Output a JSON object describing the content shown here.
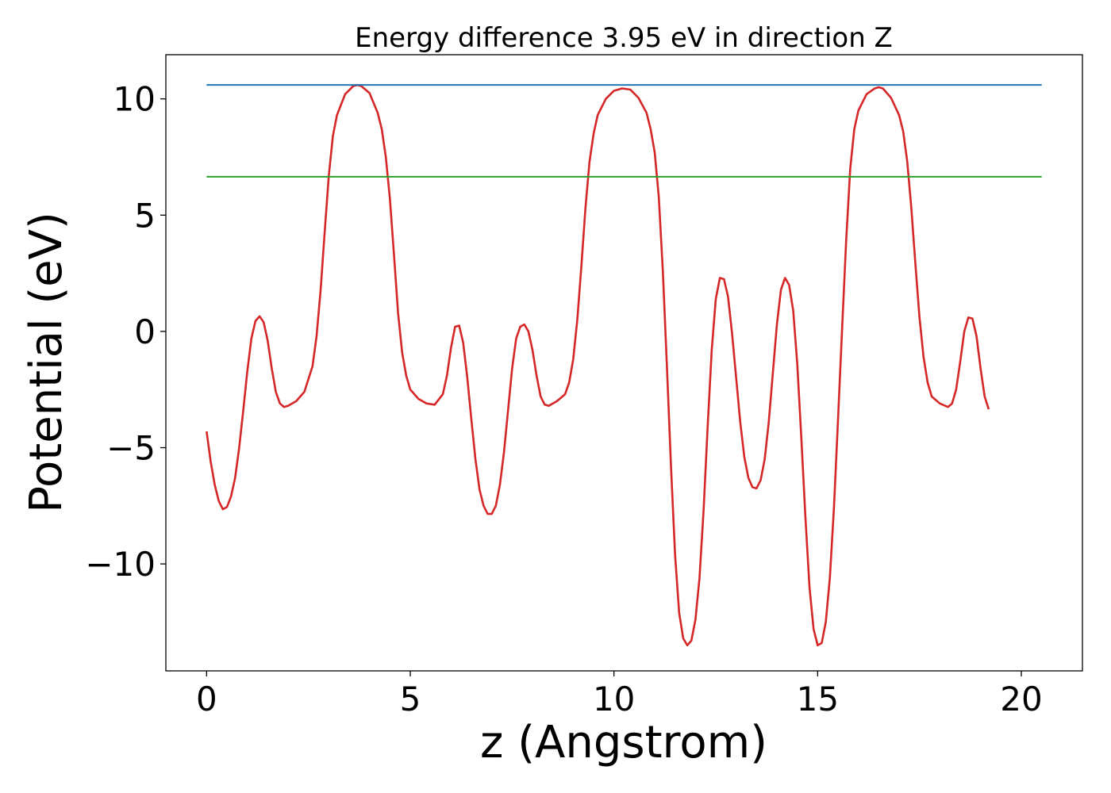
{
  "chart_data": {
    "type": "line",
    "title": "Energy difference 3.95 eV in direction Z",
    "xlabel": "z (Angstrom)",
    "ylabel": "Potential (eV)",
    "xlim": [
      -1.0,
      21.5
    ],
    "ylim": [
      -14.6,
      11.9
    ],
    "xticks": [
      0,
      5,
      10,
      15,
      20
    ],
    "yticks": [
      10,
      5,
      0,
      -5,
      -10
    ],
    "xtick_labels": [
      "0",
      "5",
      "10",
      "15",
      "20"
    ],
    "ytick_labels": [
      "10",
      "5",
      "0",
      "−5",
      "−10"
    ],
    "grid": false,
    "legend": "none",
    "series": [
      {
        "color": "#d62728",
        "style": "line",
        "points": [
          [
            0.0,
            -4.3
          ],
          [
            0.1,
            -5.6
          ],
          [
            0.2,
            -6.6
          ],
          [
            0.3,
            -7.3
          ],
          [
            0.4,
            -7.65
          ],
          [
            0.5,
            -7.55
          ],
          [
            0.6,
            -7.1
          ],
          [
            0.7,
            -6.3
          ],
          [
            0.8,
            -5.0
          ],
          [
            0.9,
            -3.4
          ],
          [
            1.0,
            -1.7
          ],
          [
            1.1,
            -0.3
          ],
          [
            1.2,
            0.45
          ],
          [
            1.3,
            0.65
          ],
          [
            1.4,
            0.4
          ],
          [
            1.5,
            -0.4
          ],
          [
            1.6,
            -1.6
          ],
          [
            1.7,
            -2.6
          ],
          [
            1.8,
            -3.1
          ],
          [
            1.9,
            -3.25
          ],
          [
            2.0,
            -3.2
          ],
          [
            2.2,
            -3.0
          ],
          [
            2.4,
            -2.6
          ],
          [
            2.6,
            -1.5
          ],
          [
            2.7,
            -0.2
          ],
          [
            2.8,
            1.8
          ],
          [
            2.9,
            4.3
          ],
          [
            3.0,
            6.7
          ],
          [
            3.1,
            8.4
          ],
          [
            3.2,
            9.3
          ],
          [
            3.4,
            10.2
          ],
          [
            3.6,
            10.55
          ],
          [
            3.7,
            10.6
          ],
          [
            3.8,
            10.55
          ],
          [
            4.0,
            10.25
          ],
          [
            4.2,
            9.4
          ],
          [
            4.3,
            8.7
          ],
          [
            4.4,
            7.5
          ],
          [
            4.5,
            5.7
          ],
          [
            4.6,
            3.3
          ],
          [
            4.7,
            0.8
          ],
          [
            4.8,
            -0.9
          ],
          [
            4.9,
            -1.9
          ],
          [
            5.0,
            -2.5
          ],
          [
            5.2,
            -2.9
          ],
          [
            5.4,
            -3.1
          ],
          [
            5.6,
            -3.15
          ],
          [
            5.8,
            -2.7
          ],
          [
            5.9,
            -1.9
          ],
          [
            6.0,
            -0.7
          ],
          [
            6.1,
            0.2
          ],
          [
            6.2,
            0.25
          ],
          [
            6.3,
            -0.5
          ],
          [
            6.4,
            -2.0
          ],
          [
            6.5,
            -3.8
          ],
          [
            6.6,
            -5.5
          ],
          [
            6.7,
            -6.8
          ],
          [
            6.8,
            -7.5
          ],
          [
            6.9,
            -7.85
          ],
          [
            7.0,
            -7.85
          ],
          [
            7.1,
            -7.5
          ],
          [
            7.2,
            -6.6
          ],
          [
            7.3,
            -5.2
          ],
          [
            7.4,
            -3.4
          ],
          [
            7.5,
            -1.6
          ],
          [
            7.6,
            -0.3
          ],
          [
            7.7,
            0.2
          ],
          [
            7.8,
            0.3
          ],
          [
            7.9,
            0.0
          ],
          [
            8.0,
            -0.8
          ],
          [
            8.1,
            -1.9
          ],
          [
            8.2,
            -2.8
          ],
          [
            8.3,
            -3.15
          ],
          [
            8.4,
            -3.2
          ],
          [
            8.6,
            -3.0
          ],
          [
            8.8,
            -2.7
          ],
          [
            8.9,
            -2.2
          ],
          [
            9.0,
            -1.2
          ],
          [
            9.1,
            0.5
          ],
          [
            9.2,
            2.8
          ],
          [
            9.3,
            5.3
          ],
          [
            9.4,
            7.3
          ],
          [
            9.5,
            8.5
          ],
          [
            9.6,
            9.3
          ],
          [
            9.8,
            10.0
          ],
          [
            10.0,
            10.35
          ],
          [
            10.2,
            10.45
          ],
          [
            10.4,
            10.4
          ],
          [
            10.6,
            10.05
          ],
          [
            10.8,
            9.4
          ],
          [
            10.9,
            8.7
          ],
          [
            11.0,
            7.7
          ],
          [
            11.1,
            5.8
          ],
          [
            11.2,
            2.6
          ],
          [
            11.3,
            -1.5
          ],
          [
            11.4,
            -5.8
          ],
          [
            11.5,
            -9.6
          ],
          [
            11.6,
            -12.1
          ],
          [
            11.7,
            -13.2
          ],
          [
            11.8,
            -13.5
          ],
          [
            11.9,
            -13.3
          ],
          [
            12.0,
            -12.4
          ],
          [
            12.1,
            -10.6
          ],
          [
            12.2,
            -7.7
          ],
          [
            12.3,
            -4.1
          ],
          [
            12.4,
            -0.8
          ],
          [
            12.5,
            1.4
          ],
          [
            12.6,
            2.3
          ],
          [
            12.7,
            2.25
          ],
          [
            12.8,
            1.5
          ],
          [
            12.9,
            -0.1
          ],
          [
            13.0,
            -2.0
          ],
          [
            13.1,
            -3.9
          ],
          [
            13.2,
            -5.4
          ],
          [
            13.3,
            -6.3
          ],
          [
            13.4,
            -6.7
          ],
          [
            13.5,
            -6.75
          ],
          [
            13.6,
            -6.4
          ],
          [
            13.7,
            -5.5
          ],
          [
            13.8,
            -3.9
          ],
          [
            13.9,
            -1.8
          ],
          [
            14.0,
            0.3
          ],
          [
            14.1,
            1.8
          ],
          [
            14.2,
            2.3
          ],
          [
            14.3,
            2.0
          ],
          [
            14.4,
            0.9
          ],
          [
            14.5,
            -1.4
          ],
          [
            14.6,
            -4.6
          ],
          [
            14.7,
            -8.0
          ],
          [
            14.8,
            -11.0
          ],
          [
            14.9,
            -12.8
          ],
          [
            15.0,
            -13.5
          ],
          [
            15.1,
            -13.4
          ],
          [
            15.2,
            -12.5
          ],
          [
            15.3,
            -10.6
          ],
          [
            15.4,
            -7.6
          ],
          [
            15.5,
            -3.8
          ],
          [
            15.6,
            0.1
          ],
          [
            15.7,
            3.9
          ],
          [
            15.8,
            7.0
          ],
          [
            15.9,
            8.7
          ],
          [
            16.0,
            9.5
          ],
          [
            16.2,
            10.2
          ],
          [
            16.4,
            10.45
          ],
          [
            16.5,
            10.5
          ],
          [
            16.6,
            10.45
          ],
          [
            16.8,
            10.05
          ],
          [
            17.0,
            9.3
          ],
          [
            17.1,
            8.6
          ],
          [
            17.2,
            7.3
          ],
          [
            17.3,
            5.3
          ],
          [
            17.4,
            2.9
          ],
          [
            17.5,
            0.6
          ],
          [
            17.6,
            -1.1
          ],
          [
            17.7,
            -2.2
          ],
          [
            17.8,
            -2.8
          ],
          [
            18.0,
            -3.1
          ],
          [
            18.2,
            -3.25
          ],
          [
            18.3,
            -3.1
          ],
          [
            18.4,
            -2.5
          ],
          [
            18.5,
            -1.3
          ],
          [
            18.6,
            0.0
          ],
          [
            18.7,
            0.6
          ],
          [
            18.8,
            0.55
          ],
          [
            18.9,
            -0.2
          ],
          [
            19.0,
            -1.6
          ],
          [
            19.1,
            -2.8
          ],
          [
            19.2,
            -3.35
          ]
        ]
      },
      {
        "color": "#1f77b4",
        "style": "hline",
        "points": [
          [
            0.0,
            10.6
          ],
          [
            20.5,
            10.6
          ]
        ]
      },
      {
        "color": "#2ca02c",
        "style": "hline",
        "points": [
          [
            0.0,
            6.65
          ],
          [
            20.5,
            6.65
          ]
        ]
      }
    ]
  }
}
